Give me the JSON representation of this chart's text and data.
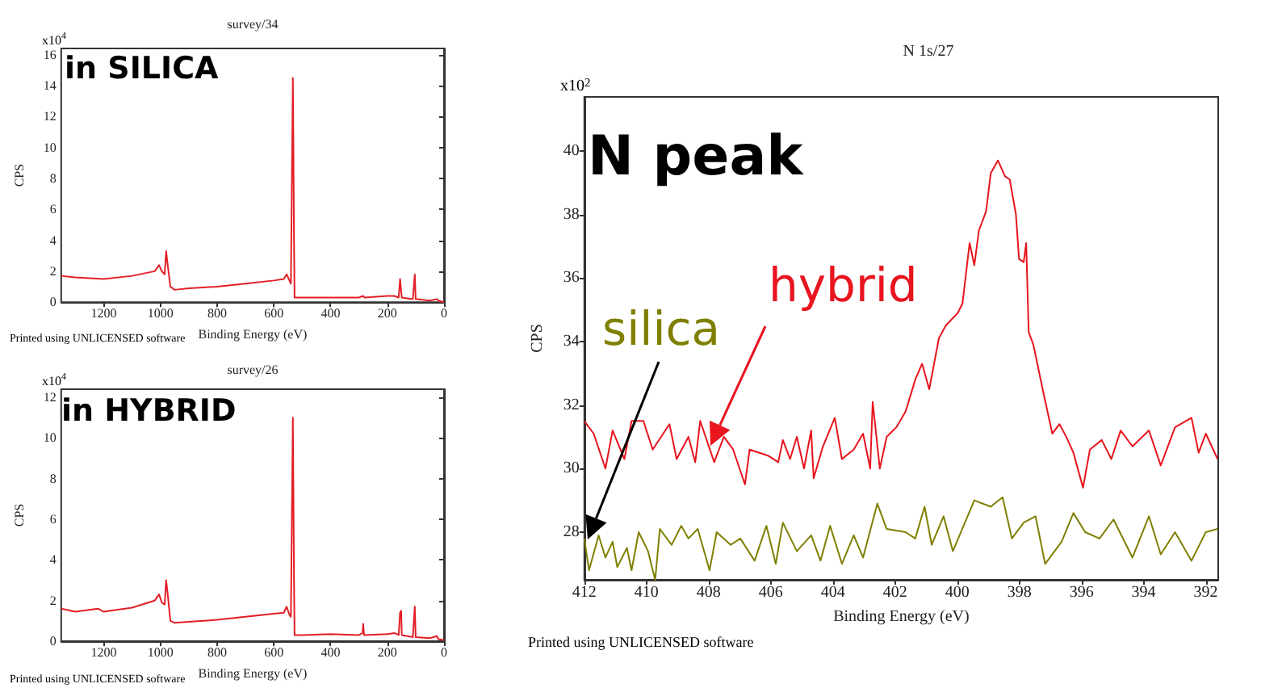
{
  "chart_data": [
    {
      "type": "line",
      "title": "survey/34",
      "xlabel": "Binding Energy (eV)",
      "ylabel": "CPS",
      "annotations": [
        "in SILICA",
        "x10$^{4}$",
        "Printed using UNLICENSED software"
      ],
      "grid": false,
      "x": [
        1350,
        1300,
        1200,
        1100,
        1020,
        1005,
        995,
        985,
        980,
        975,
        965,
        950,
        900,
        800,
        700,
        600,
        565,
        555,
        545,
        540,
        533,
        531,
        529,
        527,
        500,
        400,
        300,
        285,
        280,
        200,
        175,
        160,
        155,
        151,
        149,
        110,
        103,
        100,
        50,
        25,
        20,
        0
      ],
      "values": [
        1.7,
        1.6,
        1.5,
        1.7,
        2.0,
        2.4,
        2.0,
        1.8,
        3.3,
        2.5,
        1.0,
        0.8,
        0.9,
        1.0,
        1.2,
        1.4,
        1.5,
        1.8,
        1.4,
        1.2,
        14.5,
        9.5,
        4.0,
        0.3,
        0.3,
        0.3,
        0.3,
        0.4,
        0.3,
        0.4,
        0.4,
        0.3,
        1.5,
        1.5,
        0.3,
        0.2,
        1.8,
        0.2,
        0.1,
        0.2,
        0.1,
        0.0
      ],
      "color": "#e41e26",
      "xlim": [
        1350,
        0
      ],
      "xticks": [
        1200,
        1000,
        800,
        600,
        400,
        200,
        0
      ],
      "ylim": [
        0,
        16.4
      ],
      "yticks": [
        0,
        2,
        4,
        6,
        8,
        10,
        12,
        14,
        16
      ]
    },
    {
      "type": "line",
      "title": "survey/26",
      "xlabel": "Binding Energy (eV)",
      "ylabel": "CPS",
      "annotations": [
        "in HYBRID",
        "x10$^{4}$",
        "Printed using UNLICENSED software"
      ],
      "grid": false,
      "x": [
        1350,
        1300,
        1220,
        1200,
        1100,
        1020,
        1005,
        995,
        985,
        980,
        975,
        965,
        950,
        900,
        800,
        700,
        600,
        565,
        555,
        545,
        540,
        533,
        531,
        529,
        527,
        500,
        400,
        300,
        287,
        285,
        282,
        200,
        175,
        160,
        155,
        151,
        149,
        110,
        103,
        100,
        50,
        25,
        20,
        0
      ],
      "values": [
        1.6,
        1.45,
        1.6,
        1.45,
        1.65,
        2.0,
        2.3,
        1.9,
        1.8,
        3.0,
        2.4,
        1.0,
        0.9,
        0.95,
        1.05,
        1.2,
        1.35,
        1.4,
        1.7,
        1.3,
        1.2,
        11.0,
        7.0,
        3.0,
        0.3,
        0.3,
        0.35,
        0.3,
        0.4,
        0.85,
        0.3,
        0.35,
        0.4,
        0.3,
        1.4,
        1.5,
        0.3,
        0.2,
        1.7,
        0.2,
        0.15,
        0.25,
        0.1,
        0.05
      ],
      "color": "#e41e26",
      "xlim": [
        1350,
        0
      ],
      "xticks": [
        1200,
        1000,
        800,
        600,
        400,
        200,
        0
      ],
      "ylim": [
        0,
        12.4
      ],
      "yticks": [
        0,
        2,
        4,
        6,
        8,
        10,
        12
      ]
    },
    {
      "type": "line",
      "title": "N 1s/27",
      "xlabel": "Binding Energy (eV)",
      "ylabel": "CPS",
      "annotations": [
        "N peak",
        "x10$^{2}$",
        "Printed using UNLICENSED software"
      ],
      "grid": false,
      "series": [
        {
          "name": "hybrid",
          "color": "#e8141e",
          "x": [
            412,
            411.7,
            411.32,
            411.09,
            410.71,
            410.48,
            410.1,
            409.8,
            409.26,
            409.03,
            408.65,
            408.43,
            408.27,
            407.82,
            407.51,
            407.21,
            406.83,
            406.68,
            406.07,
            405.76,
            405.61,
            405.38,
            405.16,
            404.93,
            404.7,
            404.62,
            404.32,
            403.94,
            403.71,
            403.33,
            403.03,
            402.8,
            402.72,
            402.49,
            402.27,
            401.96,
            401.66,
            401.35,
            401.13,
            400.9,
            400.59,
            400.37,
            399.98,
            399.83,
            399.6,
            399.45,
            399.3,
            399.07,
            398.92,
            398.69,
            398.46,
            398.31,
            398.11,
            398.01,
            397.86,
            397.78,
            397.7,
            397.55,
            397.25,
            396.94,
            396.71,
            396.49,
            396.26,
            395.95,
            395.73,
            395.35,
            395.04,
            394.74,
            394.36,
            393.83,
            393.45,
            392.99,
            392.46,
            392.23,
            392,
            391.62
          ],
          "values": [
            31.5,
            31.1,
            30.0,
            31.2,
            30.3,
            31.5,
            31.5,
            30.6,
            31.4,
            30.3,
            31.0,
            30.2,
            31.5,
            30.2,
            31.0,
            30.6,
            29.5,
            30.6,
            30.4,
            30.2,
            30.9,
            30.3,
            31.0,
            30.0,
            31.2,
            29.7,
            30.7,
            31.6,
            30.3,
            30.6,
            31.1,
            30.0,
            32.1,
            30.0,
            31.0,
            31.3,
            31.8,
            32.8,
            33.3,
            32.5,
            34.1,
            34.5,
            34.9,
            35.2,
            37.1,
            36.4,
            37.5,
            38.1,
            39.3,
            39.7,
            39.2,
            39.1,
            38.0,
            36.6,
            36.5,
            37.1,
            34.3,
            33.9,
            32.5,
            31.1,
            31.4,
            31.0,
            30.5,
            29.4,
            30.6,
            30.9,
            30.3,
            31.2,
            30.7,
            31.2,
            30.1,
            31.3,
            31.6,
            30.5,
            31.1,
            30.3
          ]
        },
        {
          "name": "silica",
          "color": "#7f7f00",
          "x": [
            412,
            411.85,
            411.54,
            411.32,
            411.09,
            410.94,
            410.63,
            410.48,
            410.25,
            409.95,
            409.72,
            409.57,
            409.19,
            408.88,
            408.65,
            408.35,
            407.97,
            407.74,
            407.29,
            406.98,
            406.52,
            406.14,
            405.84,
            405.61,
            405.16,
            404.7,
            404.4,
            404.09,
            403.71,
            403.33,
            403.03,
            402.57,
            402.27,
            401.66,
            401.35,
            401.05,
            400.82,
            400.44,
            400.14,
            399.45,
            398.92,
            398.54,
            398.24,
            397.86,
            397.48,
            397.17,
            396.64,
            396.26,
            395.88,
            395.42,
            394.97,
            394.36,
            393.83,
            393.45,
            392.99,
            392.46,
            392,
            391.62
          ],
          "values": [
            27.8,
            26.8,
            27.9,
            27.2,
            27.7,
            26.9,
            27.5,
            26.8,
            28.0,
            27.4,
            26.5,
            28.1,
            27.6,
            28.2,
            27.8,
            28.1,
            26.8,
            28.0,
            27.6,
            27.8,
            27.1,
            28.2,
            27.0,
            28.3,
            27.4,
            27.9,
            27.1,
            28.2,
            27.0,
            27.9,
            27.2,
            28.9,
            28.1,
            28.0,
            27.8,
            28.8,
            27.6,
            28.5,
            27.4,
            29.0,
            28.8,
            29.1,
            27.8,
            28.3,
            28.5,
            27.0,
            27.7,
            28.6,
            28.0,
            27.8,
            28.4,
            27.2,
            28.5,
            27.3,
            28.0,
            27.1,
            28.0,
            28.1
          ]
        }
      ],
      "xlim": [
        412,
        391.6
      ],
      "xticks": [
        412,
        410,
        408,
        406,
        404,
        402,
        400,
        398,
        396,
        394,
        392
      ],
      "ylim": [
        26.5,
        41.7
      ],
      "yticks": [
        28,
        30,
        32,
        34,
        36,
        38,
        40
      ]
    }
  ]
}
